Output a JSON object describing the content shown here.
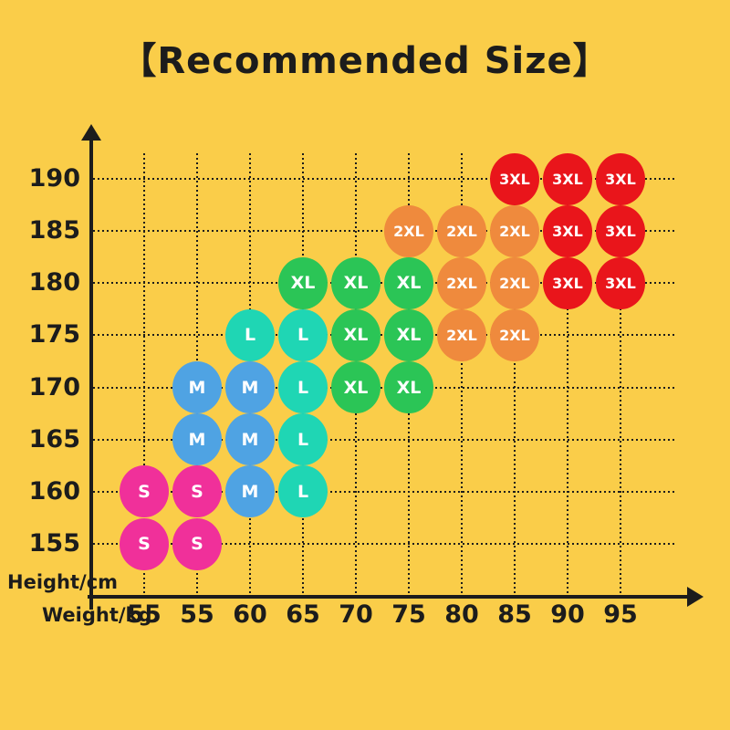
{
  "title": "【Recommended Size】",
  "colors": {
    "background": "#FACD49",
    "ink": "#1C1C1C",
    "bubble_text": "#FFFFFF",
    "sizes": {
      "S": "#F0309A",
      "M": "#4FA3E3",
      "L": "#1FD6B4",
      "XL": "#2BC556",
      "2XL": "#EF8A3D",
      "3XL": "#E9151B"
    }
  },
  "chart_data": {
    "type": "scatter",
    "title": "【Recommended Size】",
    "xlabel": "Weight/kg",
    "ylabel": "Height/cm",
    "x_tick_labels": [
      "55",
      "55",
      "60",
      "65",
      "70",
      "75",
      "80",
      "85",
      "90",
      "95"
    ],
    "y_tick_labels": [
      "190",
      "185",
      "180",
      "175",
      "170",
      "165",
      "160",
      "155"
    ],
    "y_values_cm": [
      155,
      160,
      165,
      170,
      175,
      180,
      185,
      190
    ],
    "grid": true,
    "legend": [
      {
        "label": "S",
        "color": "#F0309A"
      },
      {
        "label": "M",
        "color": "#4FA3E3"
      },
      {
        "label": "L",
        "color": "#1FD6B4"
      },
      {
        "label": "XL",
        "color": "#2BC556"
      },
      {
        "label": "2XL",
        "color": "#EF8A3D"
      },
      {
        "label": "3XL",
        "color": "#E9151B"
      }
    ],
    "points": [
      {
        "height_cm": 190,
        "weight_col": 7,
        "size": "3XL"
      },
      {
        "height_cm": 190,
        "weight_col": 8,
        "size": "3XL"
      },
      {
        "height_cm": 190,
        "weight_col": 9,
        "size": "3XL"
      },
      {
        "height_cm": 185,
        "weight_col": 5,
        "size": "2XL"
      },
      {
        "height_cm": 185,
        "weight_col": 6,
        "size": "2XL"
      },
      {
        "height_cm": 185,
        "weight_col": 7,
        "size": "2XL"
      },
      {
        "height_cm": 185,
        "weight_col": 8,
        "size": "3XL"
      },
      {
        "height_cm": 185,
        "weight_col": 9,
        "size": "3XL"
      },
      {
        "height_cm": 180,
        "weight_col": 3,
        "size": "XL"
      },
      {
        "height_cm": 180,
        "weight_col": 4,
        "size": "XL"
      },
      {
        "height_cm": 180,
        "weight_col": 5,
        "size": "XL"
      },
      {
        "height_cm": 180,
        "weight_col": 6,
        "size": "2XL"
      },
      {
        "height_cm": 180,
        "weight_col": 7,
        "size": "2XL"
      },
      {
        "height_cm": 180,
        "weight_col": 8,
        "size": "3XL"
      },
      {
        "height_cm": 180,
        "weight_col": 9,
        "size": "3XL"
      },
      {
        "height_cm": 175,
        "weight_col": 2,
        "size": "L"
      },
      {
        "height_cm": 175,
        "weight_col": 3,
        "size": "L"
      },
      {
        "height_cm": 175,
        "weight_col": 4,
        "size": "XL"
      },
      {
        "height_cm": 175,
        "weight_col": 5,
        "size": "XL"
      },
      {
        "height_cm": 175,
        "weight_col": 6,
        "size": "2XL"
      },
      {
        "height_cm": 175,
        "weight_col": 7,
        "size": "2XL"
      },
      {
        "height_cm": 170,
        "weight_col": 1,
        "size": "M"
      },
      {
        "height_cm": 170,
        "weight_col": 2,
        "size": "M"
      },
      {
        "height_cm": 170,
        "weight_col": 3,
        "size": "L"
      },
      {
        "height_cm": 170,
        "weight_col": 4,
        "size": "XL"
      },
      {
        "height_cm": 170,
        "weight_col": 5,
        "size": "XL"
      },
      {
        "height_cm": 165,
        "weight_col": 1,
        "size": "M"
      },
      {
        "height_cm": 165,
        "weight_col": 2,
        "size": "M"
      },
      {
        "height_cm": 165,
        "weight_col": 3,
        "size": "L"
      },
      {
        "height_cm": 160,
        "weight_col": 0,
        "size": "S"
      },
      {
        "height_cm": 160,
        "weight_col": 1,
        "size": "S"
      },
      {
        "height_cm": 160,
        "weight_col": 2,
        "size": "M"
      },
      {
        "height_cm": 160,
        "weight_col": 3,
        "size": "L"
      },
      {
        "height_cm": 155,
        "weight_col": 0,
        "size": "S"
      },
      {
        "height_cm": 155,
        "weight_col": 1,
        "size": "S"
      }
    ]
  }
}
